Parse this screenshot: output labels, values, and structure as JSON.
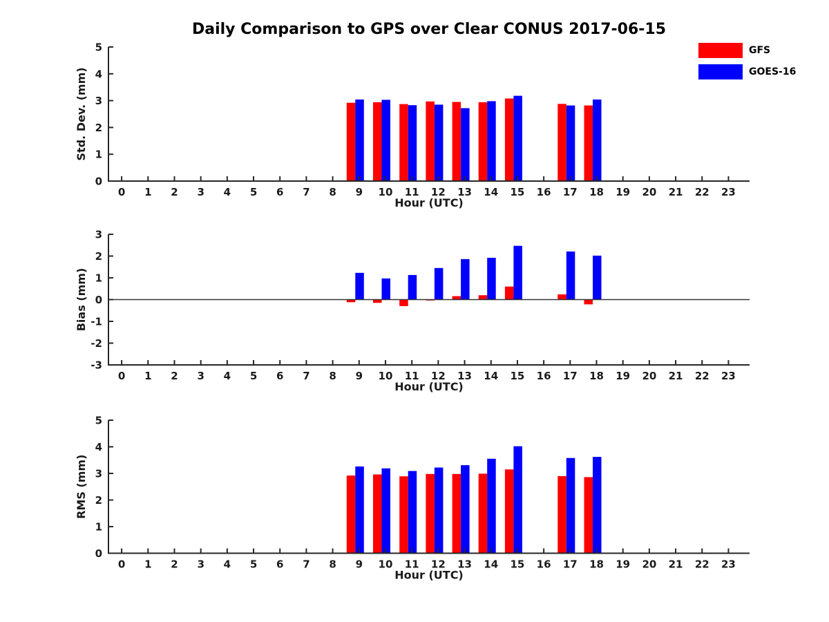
{
  "title": "Daily Comparison to GPS over Clear CONUS 2017-06-15",
  "legend": {
    "position": "top-right",
    "items": [
      {
        "label": "GFS",
        "color": "#ff0000"
      },
      {
        "label": "GOES-16",
        "color": "#0000ff"
      }
    ]
  },
  "chart_data": [
    {
      "type": "bar",
      "panel": "std-dev",
      "xlabel": "Hour (UTC)",
      "ylabel": "Std. Dev. (mm)",
      "xlim": [
        -0.5,
        23.8
      ],
      "ylim": [
        0,
        5
      ],
      "yticks": [
        0,
        1,
        2,
        3,
        4,
        5
      ],
      "xticks": [
        0,
        1,
        2,
        3,
        4,
        5,
        6,
        7,
        8,
        9,
        10,
        11,
        12,
        13,
        14,
        15,
        16,
        17,
        18,
        19,
        20,
        21,
        22,
        23
      ],
      "zero_line": false,
      "grid": false,
      "x": [
        9,
        10,
        11,
        12,
        13,
        14,
        15,
        17,
        18
      ],
      "series": [
        {
          "name": "GFS",
          "color": "#ff0000",
          "values": [
            2.92,
            2.94,
            2.87,
            2.97,
            2.95,
            2.94,
            3.08,
            2.88,
            2.82
          ]
        },
        {
          "name": "GOES-16",
          "color": "#0000ff",
          "values": [
            3.04,
            3.03,
            2.83,
            2.85,
            2.72,
            2.98,
            3.18,
            2.82,
            3.04
          ]
        }
      ]
    },
    {
      "type": "bar",
      "panel": "bias",
      "xlabel": "Hour (UTC)",
      "ylabel": "Bias (mm)",
      "xlim": [
        -0.5,
        23.8
      ],
      "ylim": [
        -3,
        3
      ],
      "yticks": [
        -3,
        -2,
        -1,
        0,
        1,
        2,
        3
      ],
      "xticks": [
        0,
        1,
        2,
        3,
        4,
        5,
        6,
        7,
        8,
        9,
        10,
        11,
        12,
        13,
        14,
        15,
        16,
        17,
        18,
        19,
        20,
        21,
        22,
        23
      ],
      "zero_line": true,
      "grid": false,
      "x": [
        9,
        10,
        11,
        12,
        13,
        14,
        15,
        17,
        18
      ],
      "series": [
        {
          "name": "GFS",
          "color": "#ff0000",
          "values": [
            -0.12,
            -0.15,
            -0.3,
            -0.04,
            0.16,
            0.2,
            0.6,
            0.24,
            -0.22
          ]
        },
        {
          "name": "GOES-16",
          "color": "#0000ff",
          "values": [
            1.23,
            0.97,
            1.13,
            1.45,
            1.86,
            1.92,
            2.47,
            2.21,
            2.02
          ]
        }
      ]
    },
    {
      "type": "bar",
      "panel": "rms",
      "xlabel": "Hour (UTC)",
      "ylabel": "RMS (mm)",
      "xlim": [
        -0.5,
        23.8
      ],
      "ylim": [
        0,
        5
      ],
      "yticks": [
        0,
        1,
        2,
        3,
        4,
        5
      ],
      "xticks": [
        0,
        1,
        2,
        3,
        4,
        5,
        6,
        7,
        8,
        9,
        10,
        11,
        12,
        13,
        14,
        15,
        16,
        17,
        18,
        19,
        20,
        21,
        22,
        23
      ],
      "zero_line": false,
      "grid": false,
      "x": [
        9,
        10,
        11,
        12,
        13,
        14,
        15,
        17,
        18
      ],
      "series": [
        {
          "name": "GFS",
          "color": "#ff0000",
          "values": [
            2.92,
            2.96,
            2.89,
            2.98,
            2.98,
            2.99,
            3.15,
            2.9,
            2.86
          ]
        },
        {
          "name": "GOES-16",
          "color": "#0000ff",
          "values": [
            3.26,
            3.19,
            3.09,
            3.22,
            3.31,
            3.55,
            4.02,
            3.58,
            3.62
          ]
        }
      ]
    }
  ]
}
